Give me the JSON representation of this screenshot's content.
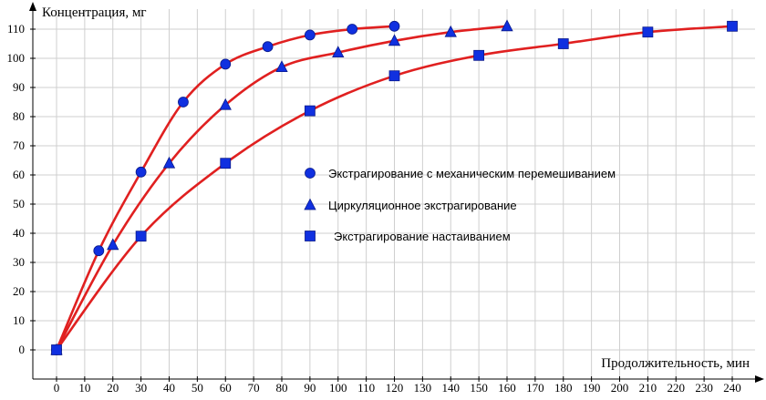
{
  "chart_data": {
    "type": "scatter",
    "ylabel": "Концентрация, мг",
    "xlabel": "Продолжительность, мин",
    "xlim": [
      0,
      240
    ],
    "ylim": [
      -10,
      115
    ],
    "x_ticks": [
      0,
      10,
      20,
      30,
      40,
      50,
      60,
      70,
      80,
      90,
      100,
      110,
      120,
      130,
      140,
      150,
      160,
      170,
      180,
      190,
      200,
      210,
      220,
      230,
      240
    ],
    "y_ticks": [
      0,
      10,
      20,
      30,
      40,
      50,
      60,
      70,
      80,
      90,
      100,
      110
    ],
    "grid": true,
    "legend_position": "center-right",
    "curve_color": "#e02020",
    "marker_color": "#1030e0",
    "series": [
      {
        "name": "Экстрагирование с механическим перемешиванием",
        "marker": "circle",
        "x": [
          0,
          15,
          30,
          45,
          60,
          75,
          90,
          105,
          120
        ],
        "y": [
          0,
          34,
          61,
          85,
          98,
          104,
          108,
          110,
          111
        ]
      },
      {
        "name": "Циркуляционное экстрагирование",
        "marker": "triangle",
        "x": [
          0,
          20,
          40,
          60,
          80,
          100,
          120,
          140,
          160
        ],
        "y": [
          0,
          36,
          64,
          84,
          97,
          102,
          106,
          109,
          111
        ]
      },
      {
        "name": "Экстрагирование настаиванием",
        "marker": "square",
        "x": [
          0,
          30,
          60,
          90,
          120,
          150,
          180,
          210,
          240
        ],
        "y": [
          0,
          39,
          64,
          82,
          94,
          101,
          105,
          109,
          111
        ]
      }
    ]
  }
}
